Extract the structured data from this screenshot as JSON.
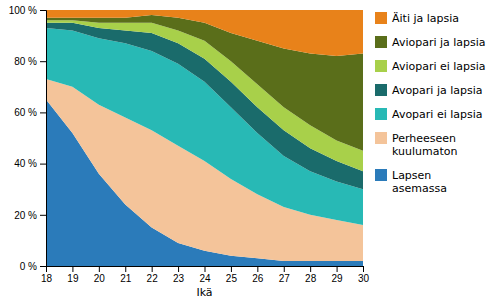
{
  "chart_data": {
    "type": "area",
    "stacked": true,
    "x_label": "Ikä",
    "x": [
      18,
      19,
      20,
      21,
      22,
      23,
      24,
      25,
      26,
      27,
      28,
      29,
      30
    ],
    "xlim": [
      18,
      30
    ],
    "xticks": [
      18,
      19,
      20,
      21,
      22,
      23,
      24,
      25,
      26,
      27,
      28,
      29,
      30
    ],
    "ylim": [
      0,
      100
    ],
    "yticks": [
      {
        "value": 0,
        "label": "0 %"
      },
      {
        "value": 20,
        "label": "20 %"
      },
      {
        "value": 40,
        "label": "40 %"
      },
      {
        "value": 60,
        "label": "60 %"
      },
      {
        "value": 80,
        "label": "80 %"
      },
      {
        "value": 100,
        "label": "100 %"
      }
    ],
    "grid": false,
    "legend": "right",
    "series": [
      {
        "name": "Lapsen\nasemassa",
        "color": "#2b7bba",
        "values": [
          65,
          52,
          36,
          24,
          15,
          9,
          6,
          4,
          3,
          2,
          2,
          2,
          2
        ]
      },
      {
        "name": "Perheeseen\nkuulumaton",
        "color": "#f4c49a",
        "values": [
          8,
          18,
          27,
          34,
          38,
          38,
          35,
          30,
          25,
          21,
          18,
          16,
          14
        ]
      },
      {
        "name": "Avopari ei lapsia",
        "color": "#28b9b5",
        "values": [
          20,
          22,
          26,
          29,
          31,
          32,
          31,
          28,
          24,
          20,
          17,
          15,
          14
        ]
      },
      {
        "name": "Avopari ja lapsia",
        "color": "#1a6b6b",
        "values": [
          2,
          3,
          4,
          5,
          7,
          8,
          9,
          10,
          10,
          10,
          9,
          8,
          7
        ]
      },
      {
        "name": "Aviopari ei lapsia",
        "color": "#a8d04a",
        "values": [
          1,
          1,
          2,
          3,
          4,
          5,
          7,
          8,
          9,
          9,
          9,
          8,
          8
        ]
      },
      {
        "name": "Aviopari ja lapsia",
        "color": "#5a6e1a",
        "values": [
          1,
          1,
          2,
          2,
          3,
          5,
          7,
          11,
          17,
          23,
          28,
          33,
          38
        ]
      },
      {
        "name": "Äiti ja lapsia",
        "color": "#e8821a",
        "values": [
          3,
          3,
          3,
          3,
          2,
          3,
          5,
          9,
          12,
          15,
          17,
          18,
          17
        ]
      }
    ]
  }
}
